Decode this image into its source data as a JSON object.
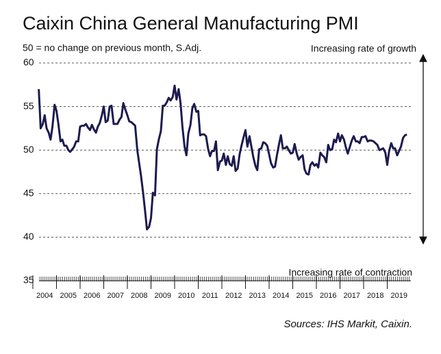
{
  "chart_data": {
    "type": "line",
    "title": "Caixin China General Manufacturing PMI",
    "subtitle": "50 = no change on previous month, S.Adj.",
    "annotations": [
      "Increasing rate of growth",
      "Increasing rate of contraction"
    ],
    "source": "Sources: IHS Markit, Caixin.",
    "x": [
      2004.25,
      2004.33,
      2004.42,
      2004.5,
      2004.58,
      2004.67,
      2004.75,
      2004.83,
      2004.92,
      2005.0,
      2005.08,
      2005.17,
      2005.25,
      2005.33,
      2005.42,
      2005.5,
      2005.58,
      2005.67,
      2005.75,
      2005.83,
      2005.92,
      2006.0,
      2006.08,
      2006.17,
      2006.25,
      2006.33,
      2006.42,
      2006.5,
      2006.58,
      2006.67,
      2006.75,
      2006.83,
      2006.92,
      2007.0,
      2007.08,
      2007.17,
      2007.25,
      2007.33,
      2007.42,
      2007.5,
      2007.58,
      2007.67,
      2007.75,
      2007.83,
      2007.92,
      2008.0,
      2008.08,
      2008.17,
      2008.25,
      2008.33,
      2008.42,
      2008.5,
      2008.58,
      2008.67,
      2008.75,
      2008.83,
      2008.92,
      2009.0,
      2009.08,
      2009.17,
      2009.25,
      2009.33,
      2009.42,
      2009.5,
      2009.58,
      2009.67,
      2009.75,
      2009.83,
      2009.92,
      2010.0,
      2010.08,
      2010.17,
      2010.25,
      2010.33,
      2010.42,
      2010.5,
      2010.58,
      2010.67,
      2010.75,
      2010.83,
      2010.92,
      2011.0,
      2011.08,
      2011.17,
      2011.25,
      2011.33,
      2011.42,
      2011.5,
      2011.58,
      2011.67,
      2011.75,
      2011.83,
      2011.92,
      2012.0,
      2012.08,
      2012.17,
      2012.25,
      2012.33,
      2012.42,
      2012.5,
      2012.58,
      2012.67,
      2012.75,
      2012.83,
      2012.92,
      2013.0,
      2013.08,
      2013.17,
      2013.25,
      2013.33,
      2013.42,
      2013.5,
      2013.58,
      2013.67,
      2013.75,
      2013.83,
      2013.92,
      2014.0,
      2014.08,
      2014.17,
      2014.25,
      2014.33,
      2014.42,
      2014.5,
      2014.58,
      2014.67,
      2014.75,
      2014.83,
      2014.92,
      2015.0,
      2015.08,
      2015.17,
      2015.25,
      2015.33,
      2015.42,
      2015.5,
      2015.58,
      2015.67,
      2015.75,
      2015.83,
      2015.92,
      2016.0,
      2016.08,
      2016.17,
      2016.25,
      2016.33,
      2016.42,
      2016.5,
      2016.58,
      2016.67,
      2016.75,
      2016.83,
      2016.92,
      2017.0,
      2017.08,
      2017.17,
      2017.25,
      2017.33,
      2017.42,
      2017.5,
      2017.58,
      2017.67,
      2017.75,
      2017.83,
      2017.92,
      2018.0,
      2018.08,
      2018.17,
      2018.25,
      2018.33,
      2018.42,
      2018.5,
      2018.58,
      2018.67,
      2018.75,
      2018.83,
      2018.92,
      2019.0,
      2019.08,
      2019.17,
      2019.25,
      2019.33,
      2019.42,
      2019.5,
      2019.58,
      2019.67,
      2019.75,
      2019.83
    ],
    "series": [
      {
        "color": "#1c1a4f",
        "values": [
          57.0,
          52.5,
          53.0,
          54.0,
          52.5,
          52.0,
          51.2,
          52.7,
          55.2,
          54.5,
          53.0,
          51.0,
          51.2,
          50.5,
          50.5,
          50.0,
          49.8,
          50.1,
          50.4,
          51.0,
          51.0,
          52.7,
          52.8,
          52.8,
          53.0,
          52.6,
          52.3,
          52.9,
          52.4,
          52.0,
          52.7,
          53.1,
          54.0,
          55.0,
          53.2,
          53.4,
          55.0,
          55.1,
          53.0,
          53.0,
          53.0,
          53.5,
          53.8,
          55.4,
          54.6,
          54.0,
          53.3,
          53.2,
          53.0,
          52.8,
          50.0,
          48.5,
          47.0,
          45.0,
          43.0,
          40.9,
          41.2,
          42.2,
          45.1,
          44.8,
          50.1,
          51.2,
          52.2,
          55.1,
          55.1,
          55.5,
          56.0,
          55.7,
          56.1,
          57.4,
          55.8,
          57.0,
          55.4,
          52.7,
          50.4,
          49.4,
          51.9,
          52.9,
          54.8,
          55.3,
          54.4,
          54.5,
          51.7,
          51.8,
          51.8,
          51.6,
          50.1,
          49.3,
          49.9,
          49.9,
          51.0,
          47.7,
          48.7,
          48.8,
          49.6,
          48.3,
          49.3,
          48.4,
          48.2,
          49.3,
          47.6,
          47.9,
          49.5,
          50.5,
          51.5,
          52.3,
          50.4,
          51.6,
          50.4,
          49.2,
          48.2,
          47.7,
          50.1,
          50.2,
          50.9,
          50.8,
          50.5,
          49.5,
          48.5,
          48.0,
          48.1,
          49.4,
          50.7,
          51.7,
          50.2,
          50.2,
          50.4,
          50.0,
          49.6,
          49.7,
          50.7,
          49.6,
          48.9,
          49.2,
          49.4,
          47.8,
          47.3,
          47.2,
          48.3,
          48.6,
          48.2,
          48.4,
          48.0,
          49.7,
          49.4,
          49.2,
          48.6,
          50.6,
          50.0,
          50.1,
          51.2,
          50.9,
          51.9,
          51.0,
          51.7,
          51.2,
          50.3,
          49.6,
          50.4,
          51.1,
          51.6,
          51.0,
          51.0,
          50.8,
          51.5,
          51.5,
          51.6,
          51.0,
          51.1,
          51.1,
          51.0,
          50.8,
          50.6,
          50.0,
          50.1,
          50.2,
          49.7,
          48.3,
          49.9,
          50.8,
          50.2,
          50.2,
          49.4,
          49.9,
          50.4,
          51.4,
          51.7,
          51.8
        ]
      }
    ],
    "xlim": [
      2004,
      2020
    ],
    "xticks": [
      2004,
      2005,
      2006,
      2007,
      2008,
      2009,
      2010,
      2011,
      2012,
      2013,
      2014,
      2015,
      2016,
      2017,
      2018,
      2019
    ],
    "ylim": [
      35,
      60
    ],
    "yticks": [
      35,
      40,
      45,
      50,
      55,
      60
    ],
    "grid": true
  }
}
